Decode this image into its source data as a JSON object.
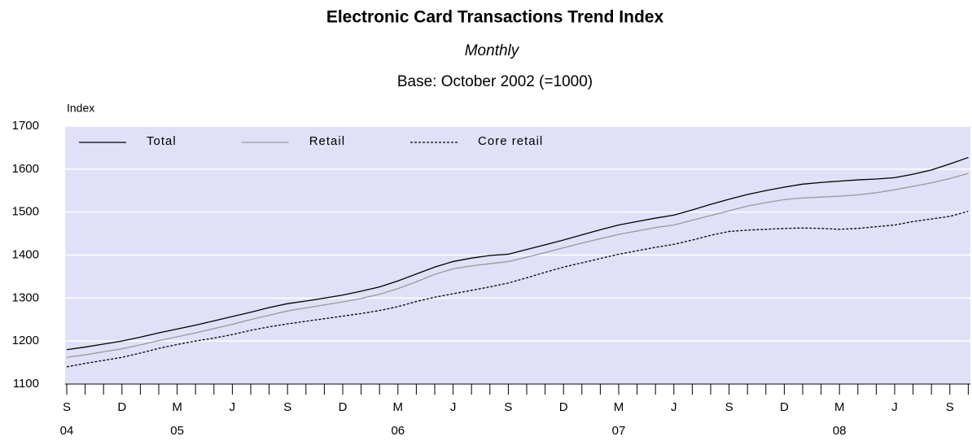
{
  "chart_data": {
    "type": "line",
    "title": "Electronic Card Transactions Trend Index",
    "subtitle": "Monthly",
    "note": "Base: October 2002 (=1000)",
    "y_label": "Index",
    "categories": [
      "S",
      null,
      null,
      "D",
      null,
      null,
      "M",
      null,
      null,
      "J",
      null,
      null,
      "S",
      null,
      null,
      "D",
      null,
      null,
      "M",
      null,
      null,
      "J",
      null,
      null,
      "S",
      null,
      null,
      "D",
      null,
      null,
      "M",
      null,
      null,
      "J",
      null,
      null,
      "S",
      null,
      null,
      "D",
      null,
      null,
      "M",
      null,
      null,
      "J",
      null,
      null,
      "S",
      null
    ],
    "year_labels": [
      "04",
      null,
      null,
      null,
      null,
      null,
      "05",
      null,
      null,
      null,
      null,
      null,
      null,
      null,
      null,
      null,
      null,
      null,
      "06",
      null,
      null,
      null,
      null,
      null,
      null,
      null,
      null,
      null,
      null,
      null,
      "07",
      null,
      null,
      null,
      null,
      null,
      null,
      null,
      null,
      null,
      null,
      null,
      "08",
      null,
      null,
      null,
      null,
      null,
      null,
      null
    ],
    "series": [
      {
        "name": "Total",
        "color": "#000000",
        "dash": "solid",
        "values": [
          1180,
          1186,
          1193,
          1200,
          1209,
          1219,
          1228,
          1237,
          1247,
          1257,
          1267,
          1278,
          1287,
          1293,
          1300,
          1307,
          1316,
          1326,
          1340,
          1356,
          1372,
          1385,
          1393,
          1399,
          1402,
          1413,
          1424,
          1435,
          1447,
          1459,
          1470,
          1478,
          1486,
          1493,
          1505,
          1518,
          1530,
          1541,
          1550,
          1558,
          1565,
          1569,
          1572,
          1575,
          1577,
          1580,
          1588,
          1598,
          1612,
          1627
        ]
      },
      {
        "name": "Retail",
        "color": "#999999",
        "dash": "solid",
        "values": [
          1162,
          1168,
          1175,
          1182,
          1191,
          1201,
          1210,
          1219,
          1229,
          1239,
          1250,
          1260,
          1270,
          1277,
          1284,
          1291,
          1299,
          1309,
          1322,
          1338,
          1355,
          1368,
          1375,
          1380,
          1385,
          1395,
          1406,
          1417,
          1428,
          1438,
          1448,
          1456,
          1464,
          1470,
          1481,
          1492,
          1503,
          1514,
          1522,
          1529,
          1533,
          1535,
          1537,
          1540,
          1545,
          1552,
          1560,
          1568,
          1578,
          1590
        ]
      },
      {
        "name": "Core retail",
        "color": "#000000",
        "dash": "dotted",
        "values": [
          1140,
          1148,
          1155,
          1162,
          1172,
          1183,
          1192,
          1200,
          1207,
          1215,
          1225,
          1233,
          1240,
          1246,
          1252,
          1258,
          1264,
          1271,
          1280,
          1292,
          1302,
          1310,
          1318,
          1326,
          1335,
          1347,
          1360,
          1372,
          1382,
          1392,
          1402,
          1410,
          1418,
          1425,
          1435,
          1446,
          1455,
          1458,
          1460,
          1462,
          1463,
          1462,
          1460,
          1462,
          1466,
          1470,
          1478,
          1484,
          1490,
          1502
        ]
      }
    ],
    "ylim": [
      1100,
      1700
    ],
    "yticks": [
      1100,
      1200,
      1300,
      1400,
      1500,
      1600,
      1700
    ],
    "grid": true,
    "legend": "top-left",
    "plot_background": "#e0e0f8"
  }
}
